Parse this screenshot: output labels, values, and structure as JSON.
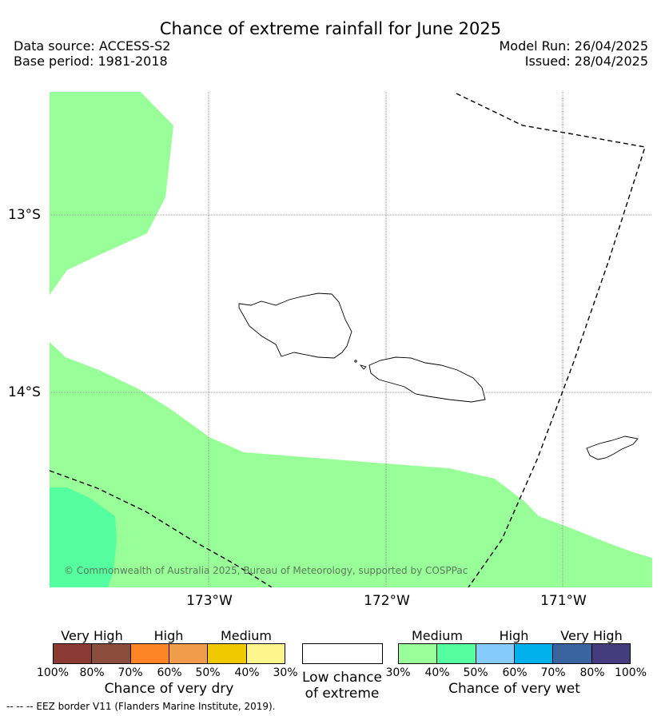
{
  "header": {
    "title": "Chance of extreme rainfall for June 2025",
    "data_source": "Data source: ACCESS-S2",
    "base_period": "Base period: 1981-2018",
    "model_run": "Model Run: 26/04/2025",
    "issued": "Issued: 28/04/2025"
  },
  "map": {
    "lat_labels": [
      "13°S",
      "14°S"
    ],
    "lon_labels": [
      "173°W",
      "172°W",
      "171°W"
    ],
    "copyright": "© Commonwealth of Australia 2025, Bureau of Meteorology, supported by COSPPac",
    "colors": {
      "ocean": "#ffffff",
      "medium_wet": "#99ff99",
      "high_wet_40": "#55ff9f",
      "land_outline": "#000000",
      "eez_border": "#000000"
    }
  },
  "legend": {
    "dry": {
      "categories": [
        "Very High",
        "High",
        "Medium"
      ],
      "colors": [
        "#8b3a33",
        "#8b4c3c",
        "#ff8426",
        "#f09c4a",
        "#f0c800",
        "#fff58d"
      ],
      "ticks": [
        "100%",
        "80%",
        "70%",
        "60%",
        "50%",
        "40%",
        "30%"
      ],
      "title": "Chance of very dry"
    },
    "low": {
      "label_line1": "Low chance",
      "label_line2": "of extreme",
      "color": "#ffffff"
    },
    "wet": {
      "categories": [
        "Medium",
        "High",
        "Very High"
      ],
      "colors": [
        "#99ff99",
        "#55ff9f",
        "#86ccfa",
        "#00b1ec",
        "#3a64a0",
        "#443c7c"
      ],
      "ticks": [
        "30%",
        "40%",
        "50%",
        "60%",
        "70%",
        "80%",
        "100%"
      ],
      "title": "Chance of very wet"
    }
  },
  "footer": "--  --  -- EEZ border V11 (Flanders Marine Institute, 2019)."
}
